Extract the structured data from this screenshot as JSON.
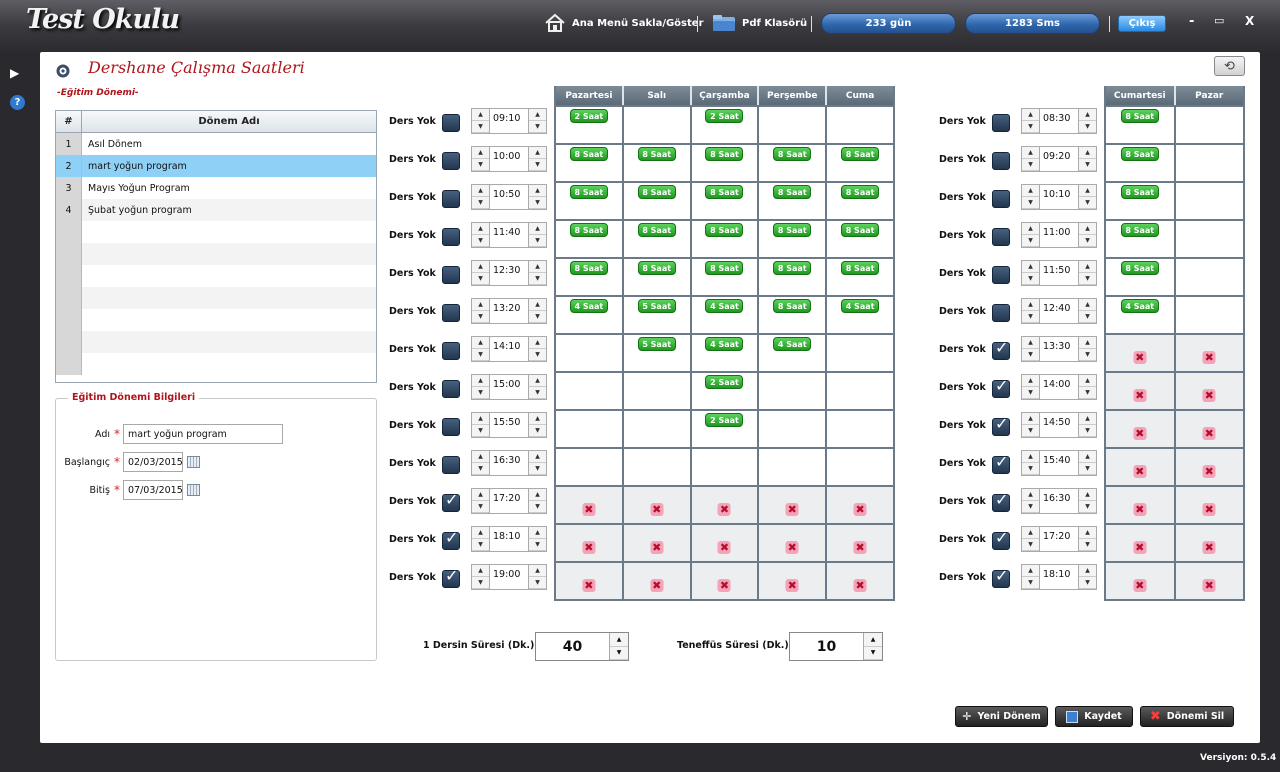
{
  "app": {
    "logo": "Test Okulu",
    "version": "Versiyon: 0.5.4"
  },
  "topbar": {
    "menu_toggle": "Ana Menü Sakla/Göster",
    "pdf": "Pdf Klasörü",
    "days": "233 gün",
    "sms": "1283 Sms",
    "exit": "Çıkış",
    "minimize": "-",
    "maximize": "▭",
    "close": "X"
  },
  "page": {
    "title": "Dershane Çalışma Saatleri",
    "section": "-Eğitim Dönemi-"
  },
  "periods": {
    "headers": [
      "#",
      "Dönem Adı"
    ],
    "rows": [
      {
        "n": "1",
        "name": "Asıl Dönem"
      },
      {
        "n": "2",
        "name": "mart yoğun program",
        "selected": true
      },
      {
        "n": "3",
        "name": "Mayıs Yoğun Program"
      },
      {
        "n": "4",
        "name": "Şubat yoğun program"
      }
    ]
  },
  "info": {
    "legend": "Eğitim Dönemi Bilgileri",
    "name_label": "Adı",
    "name_value": "mart yoğun program",
    "start_label": "Başlangıç",
    "start_value": "02/03/2015",
    "end_label": "Bitiş",
    "end_value": "07/03/2015"
  },
  "weekday": {
    "row_label": "Ders Yok",
    "days": [
      "Pazartesi",
      "Salı",
      "Çarşamba",
      "Perşembe",
      "Cuma"
    ],
    "times": [
      "09:10",
      "10:00",
      "10:50",
      "11:40",
      "12:30",
      "13:20",
      "14:10",
      "15:00",
      "15:50",
      "16:30",
      "17:20",
      "18:10",
      "19:00"
    ],
    "checked": [
      false,
      false,
      false,
      false,
      false,
      false,
      false,
      false,
      false,
      false,
      true,
      true,
      true
    ],
    "cells": [
      [
        "2 Saat",
        "",
        "2 Saat",
        "",
        ""
      ],
      [
        "8 Saat",
        "8 Saat",
        "8 Saat",
        "8 Saat",
        "8 Saat"
      ],
      [
        "8 Saat",
        "8 Saat",
        "8 Saat",
        "8 Saat",
        "8 Saat"
      ],
      [
        "8 Saat",
        "8 Saat",
        "8 Saat",
        "8 Saat",
        "8 Saat"
      ],
      [
        "8 Saat",
        "8 Saat",
        "8 Saat",
        "8 Saat",
        "8 Saat"
      ],
      [
        "4 Saat",
        "5 Saat",
        "4 Saat",
        "8 Saat",
        "4 Saat"
      ],
      [
        "",
        "5 Saat",
        "4 Saat",
        "4 Saat",
        ""
      ],
      [
        "",
        "",
        "2 Saat",
        "",
        ""
      ],
      [
        "",
        "",
        "2 Saat",
        "",
        ""
      ],
      [
        "",
        "",
        "",
        "",
        ""
      ],
      [
        "x",
        "x",
        "x",
        "x",
        "x"
      ],
      [
        "x",
        "x",
        "x",
        "x",
        "x"
      ],
      [
        "x",
        "x",
        "x",
        "x",
        "x"
      ]
    ]
  },
  "weekend": {
    "row_label": "Ders Yok",
    "days": [
      "Cumartesi",
      "Pazar"
    ],
    "times": [
      "08:30",
      "09:20",
      "10:10",
      "11:00",
      "11:50",
      "12:40",
      "13:30",
      "14:00",
      "14:50",
      "15:40",
      "16:30",
      "17:20",
      "18:10"
    ],
    "checked": [
      false,
      false,
      false,
      false,
      false,
      false,
      true,
      true,
      true,
      true,
      true,
      true,
      true
    ],
    "cells": [
      [
        "8 Saat",
        ""
      ],
      [
        "8 Saat",
        ""
      ],
      [
        "8 Saat",
        ""
      ],
      [
        "8 Saat",
        ""
      ],
      [
        "8 Saat",
        ""
      ],
      [
        "4 Saat",
        ""
      ],
      [
        "x",
        "x"
      ],
      [
        "x",
        "x"
      ],
      [
        "x",
        "x"
      ],
      [
        "x",
        "x"
      ],
      [
        "x",
        "x"
      ],
      [
        "x",
        "x"
      ],
      [
        "x",
        "x"
      ]
    ]
  },
  "durations": {
    "lesson_label": "1 Dersin Süresi (Dk.)",
    "lesson_value": "40",
    "break_label": "Teneffüs Süresi (Dk.)",
    "break_value": "10"
  },
  "actions": {
    "new": "Yeni Dönem",
    "save": "Kaydet",
    "delete": "Dönemi Sil"
  },
  "colors": {
    "accent_red": "#b0141b",
    "badge_green": "#1e9a1e",
    "selection": "#8fd0f7"
  }
}
